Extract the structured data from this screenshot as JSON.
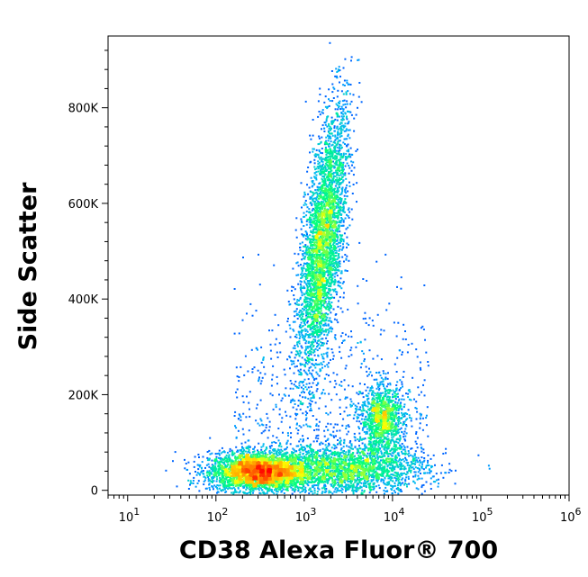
{
  "chart_data": {
    "type": "scatter",
    "subtype": "density-dot-plot",
    "title": "",
    "xlabel": "CD38 Alexa Fluor® 700",
    "ylabel": "Side Scatter",
    "x_scale": "log",
    "xlim": [
      6,
      1000000
    ],
    "ylim": [
      -10000,
      950000
    ],
    "x_ticks": [
      {
        "value": 10,
        "base": "10",
        "exp": "1"
      },
      {
        "value": 100,
        "base": "10",
        "exp": "2"
      },
      {
        "value": 1000,
        "base": "10",
        "exp": "3"
      },
      {
        "value": 10000,
        "base": "10",
        "exp": "4"
      },
      {
        "value": 100000,
        "base": "10",
        "exp": "5"
      },
      {
        "value": 1000000,
        "base": "10",
        "exp": "6"
      }
    ],
    "y_ticks": [
      {
        "value": 0,
        "label": "0"
      },
      {
        "value": 200000,
        "label": "200K"
      },
      {
        "value": 400000,
        "label": "400K"
      },
      {
        "value": 600000,
        "label": "600K"
      },
      {
        "value": 800000,
        "label": "800K"
      }
    ],
    "grid": false,
    "legend": "none",
    "density_colormap": [
      "#0000ff",
      "#00b0ff",
      "#00ff80",
      "#ffff00",
      "#ff8000",
      "#ff0000"
    ],
    "populations": [
      {
        "center_x": 300,
        "center_y": 40000,
        "log_spread_x": 0.28,
        "spread_y": 20000,
        "peak_density": "high"
      },
      {
        "center_x": 3000,
        "center_y": 45000,
        "log_spread_x": 0.45,
        "spread_y": 25000,
        "peak_density": "medium"
      },
      {
        "center_x": 1600,
        "center_y": 520000,
        "log_spread_x": 0.11,
        "spread_y": 140000,
        "peak_density": "high"
      },
      {
        "center_x": 7500,
        "center_y": 150000,
        "log_spread_x": 0.12,
        "spread_y": 35000,
        "peak_density": "medium"
      }
    ]
  }
}
